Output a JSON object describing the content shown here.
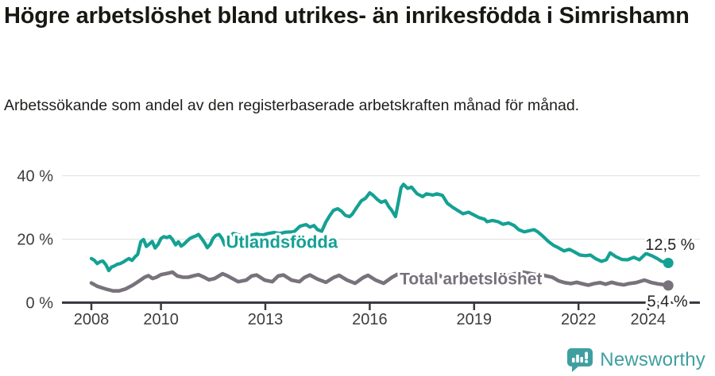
{
  "header": {
    "note": ""
  },
  "footer": {
    "brand": "Newsworthy",
    "brand_color": "#3f9fa0"
  },
  "chart_data": {
    "type": "line",
    "title": "Högre arbetslöshet bland utrikes- än inrikesfödda i Simrishamn",
    "subtitle": "Arbetssökande som andel av den registerbaserade arbetskraften månad för månad.",
    "x_axis": {
      "ticks": [
        2008,
        2010,
        2013,
        2016,
        2019,
        2022,
        2024
      ],
      "tick_labels": [
        "2008",
        "2010",
        "2013",
        "2016",
        "2019",
        "2022",
        "2024"
      ],
      "range": [
        2007.15,
        2025.5
      ]
    },
    "y_axis": {
      "ticks": [
        0,
        20,
        40
      ],
      "tick_labels": [
        "0 %",
        "20 %",
        "40 %"
      ],
      "unit": "%",
      "range": [
        0,
        45
      ],
      "grid": true
    },
    "series": [
      {
        "name": "Total arbetslöshet",
        "color": "#77727b",
        "line_width": 4.6,
        "end_value": 5.4,
        "end_label": "5,4 %",
        "points": [
          [
            2008.0,
            6.2
          ],
          [
            2008.18,
            5.1
          ],
          [
            2008.41,
            4.3
          ],
          [
            2008.62,
            3.7
          ],
          [
            2008.8,
            3.7
          ],
          [
            2008.98,
            4.3
          ],
          [
            2009.19,
            5.5
          ],
          [
            2009.37,
            6.8
          ],
          [
            2009.53,
            8.0
          ],
          [
            2009.64,
            8.5
          ],
          [
            2009.76,
            7.6
          ],
          [
            2009.87,
            8.0
          ],
          [
            2010.0,
            8.8
          ],
          [
            2010.17,
            9.2
          ],
          [
            2010.33,
            9.6
          ],
          [
            2010.47,
            8.4
          ],
          [
            2010.63,
            8.0
          ],
          [
            2010.78,
            8.0
          ],
          [
            2010.92,
            8.4
          ],
          [
            2011.08,
            8.8
          ],
          [
            2011.24,
            8.0
          ],
          [
            2011.38,
            7.2
          ],
          [
            2011.54,
            7.6
          ],
          [
            2011.77,
            9.1
          ],
          [
            2011.9,
            8.5
          ],
          [
            2012.0,
            7.9
          ],
          [
            2012.22,
            6.6
          ],
          [
            2012.45,
            7.1
          ],
          [
            2012.61,
            8.4
          ],
          [
            2012.75,
            8.7
          ],
          [
            2012.98,
            7.1
          ],
          [
            2013.2,
            6.6
          ],
          [
            2013.37,
            8.4
          ],
          [
            2013.52,
            8.7
          ],
          [
            2013.75,
            7.1
          ],
          [
            2013.98,
            6.6
          ],
          [
            2014.12,
            7.9
          ],
          [
            2014.28,
            8.7
          ],
          [
            2014.5,
            7.4
          ],
          [
            2014.74,
            6.4
          ],
          [
            2014.96,
            7.9
          ],
          [
            2015.12,
            8.6
          ],
          [
            2015.35,
            7.1
          ],
          [
            2015.58,
            6.1
          ],
          [
            2015.81,
            7.9
          ],
          [
            2015.95,
            8.6
          ],
          [
            2016.17,
            7.1
          ],
          [
            2016.4,
            6.1
          ],
          [
            2016.63,
            7.9
          ],
          [
            2016.79,
            8.9
          ],
          [
            2017.0,
            8.4
          ],
          [
            2017.2,
            7.2
          ],
          [
            2017.4,
            6.4
          ],
          [
            2017.6,
            7.0
          ],
          [
            2017.8,
            8.2
          ],
          [
            2018.0,
            8.6
          ],
          [
            2018.2,
            7.3
          ],
          [
            2018.4,
            6.5
          ],
          [
            2018.6,
            7.1
          ],
          [
            2018.8,
            8.3
          ],
          [
            2019.0,
            8.7
          ],
          [
            2019.2,
            7.4
          ],
          [
            2019.4,
            6.6
          ],
          [
            2019.6,
            7.2
          ],
          [
            2019.8,
            8.0
          ],
          [
            2020.0,
            8.6
          ],
          [
            2020.2,
            9.2
          ],
          [
            2020.4,
            9.6
          ],
          [
            2020.6,
            9.2
          ],
          [
            2020.8,
            8.8
          ],
          [
            2021.0,
            8.6
          ],
          [
            2021.25,
            8.0
          ],
          [
            2021.42,
            6.9
          ],
          [
            2021.6,
            6.3
          ],
          [
            2021.78,
            6.0
          ],
          [
            2021.95,
            6.4
          ],
          [
            2022.12,
            5.9
          ],
          [
            2022.28,
            5.5
          ],
          [
            2022.45,
            6.0
          ],
          [
            2022.62,
            6.3
          ],
          [
            2022.78,
            5.8
          ],
          [
            2022.95,
            6.4
          ],
          [
            2023.12,
            5.9
          ],
          [
            2023.3,
            5.6
          ],
          [
            2023.45,
            6.0
          ],
          [
            2023.65,
            6.3
          ],
          [
            2023.9,
            7.1
          ],
          [
            2024.1,
            6.3
          ],
          [
            2024.28,
            5.9
          ],
          [
            2024.42,
            5.7
          ],
          [
            2024.58,
            5.4
          ]
        ]
      },
      {
        "name": "Utlandsfödda",
        "color": "#14a194",
        "line_width": 4.2,
        "end_value": 12.5,
        "end_label": "12,5 %",
        "points": [
          [
            2008.0,
            13.9
          ],
          [
            2008.08,
            13.4
          ],
          [
            2008.17,
            12.3
          ],
          [
            2008.25,
            12.9
          ],
          [
            2008.33,
            13.1
          ],
          [
            2008.42,
            11.9
          ],
          [
            2008.5,
            10.1
          ],
          [
            2008.58,
            11.2
          ],
          [
            2008.67,
            11.6
          ],
          [
            2008.75,
            12.1
          ],
          [
            2008.83,
            12.3
          ],
          [
            2008.92,
            12.8
          ],
          [
            2009.0,
            13.4
          ],
          [
            2009.08,
            13.9
          ],
          [
            2009.17,
            13.3
          ],
          [
            2009.25,
            14.4
          ],
          [
            2009.33,
            15.2
          ],
          [
            2009.42,
            19.2
          ],
          [
            2009.5,
            19.9
          ],
          [
            2009.58,
            17.7
          ],
          [
            2009.67,
            18.5
          ],
          [
            2009.75,
            19.3
          ],
          [
            2009.83,
            17.2
          ],
          [
            2009.92,
            18.4
          ],
          [
            2010.0,
            20.2
          ],
          [
            2010.08,
            20.8
          ],
          [
            2010.17,
            20.5
          ],
          [
            2010.25,
            20.9
          ],
          [
            2010.33,
            19.9
          ],
          [
            2010.42,
            18.2
          ],
          [
            2010.5,
            19.2
          ],
          [
            2010.58,
            17.8
          ],
          [
            2010.67,
            18.5
          ],
          [
            2010.75,
            19.4
          ],
          [
            2010.83,
            20.2
          ],
          [
            2010.92,
            20.7
          ],
          [
            2011.0,
            21.0
          ],
          [
            2011.08,
            21.5
          ],
          [
            2011.17,
            20.2
          ],
          [
            2011.25,
            18.9
          ],
          [
            2011.33,
            17.3
          ],
          [
            2011.42,
            18.4
          ],
          [
            2011.5,
            20.3
          ],
          [
            2011.58,
            21.2
          ],
          [
            2011.67,
            21.5
          ],
          [
            2011.75,
            20.3
          ],
          [
            2011.83,
            18.2
          ],
          [
            2011.92,
            19.3
          ],
          [
            2012.0,
            21.0
          ],
          [
            2012.08,
            21.8
          ],
          [
            2012.25,
            21.3
          ],
          [
            2012.42,
            20.8
          ],
          [
            2012.58,
            21.2
          ],
          [
            2012.75,
            21.6
          ],
          [
            2012.92,
            21.3
          ],
          [
            2013.08,
            21.8
          ],
          [
            2013.25,
            22.1
          ],
          [
            2013.42,
            21.8
          ],
          [
            2013.58,
            22.2
          ],
          [
            2013.75,
            22.3
          ],
          [
            2013.83,
            22.4
          ],
          [
            2013.92,
            23.3
          ],
          [
            2014.0,
            24.1
          ],
          [
            2014.17,
            24.6
          ],
          [
            2014.28,
            23.8
          ],
          [
            2014.4,
            24.3
          ],
          [
            2014.5,
            23.0
          ],
          [
            2014.62,
            22.5
          ],
          [
            2014.74,
            25.4
          ],
          [
            2014.85,
            27.4
          ],
          [
            2014.96,
            29.1
          ],
          [
            2015.08,
            29.6
          ],
          [
            2015.19,
            28.8
          ],
          [
            2015.3,
            27.5
          ],
          [
            2015.42,
            27.1
          ],
          [
            2015.5,
            27.9
          ],
          [
            2015.65,
            30.4
          ],
          [
            2015.76,
            32.1
          ],
          [
            2015.88,
            32.9
          ],
          [
            2016.0,
            34.6
          ],
          [
            2016.1,
            33.8
          ],
          [
            2016.22,
            32.5
          ],
          [
            2016.33,
            31.6
          ],
          [
            2016.45,
            32.1
          ],
          [
            2016.55,
            30.2
          ],
          [
            2016.63,
            29.1
          ],
          [
            2016.74,
            27.1
          ],
          [
            2016.82,
            31.5
          ],
          [
            2016.9,
            36.2
          ],
          [
            2016.97,
            37.3
          ],
          [
            2017.09,
            36.0
          ],
          [
            2017.2,
            36.4
          ],
          [
            2017.36,
            34.3
          ],
          [
            2017.52,
            33.4
          ],
          [
            2017.63,
            34.3
          ],
          [
            2017.82,
            33.9
          ],
          [
            2017.93,
            34.3
          ],
          [
            2018.09,
            33.8
          ],
          [
            2018.23,
            31.3
          ],
          [
            2018.39,
            30.0
          ],
          [
            2018.55,
            28.9
          ],
          [
            2018.68,
            28.0
          ],
          [
            2018.84,
            28.5
          ],
          [
            2019.0,
            27.6
          ],
          [
            2019.14,
            26.8
          ],
          [
            2019.3,
            26.3
          ],
          [
            2019.37,
            25.5
          ],
          [
            2019.53,
            25.9
          ],
          [
            2019.69,
            25.5
          ],
          [
            2019.83,
            24.7
          ],
          [
            2019.99,
            25.1
          ],
          [
            2020.15,
            24.3
          ],
          [
            2020.28,
            23.0
          ],
          [
            2020.44,
            22.3
          ],
          [
            2020.6,
            22.7
          ],
          [
            2020.72,
            23.0
          ],
          [
            2020.83,
            22.3
          ],
          [
            2020.97,
            21.0
          ],
          [
            2021.13,
            19.3
          ],
          [
            2021.29,
            18.0
          ],
          [
            2021.42,
            17.3
          ],
          [
            2021.58,
            16.3
          ],
          [
            2021.74,
            16.8
          ],
          [
            2021.88,
            16.0
          ],
          [
            2022.04,
            15.0
          ],
          [
            2022.2,
            14.8
          ],
          [
            2022.34,
            15.0
          ],
          [
            2022.5,
            13.8
          ],
          [
            2022.66,
            13.0
          ],
          [
            2022.8,
            13.5
          ],
          [
            2022.91,
            15.7
          ],
          [
            2023.07,
            14.5
          ],
          [
            2023.25,
            13.6
          ],
          [
            2023.41,
            13.5
          ],
          [
            2023.59,
            14.3
          ],
          [
            2023.75,
            13.5
          ],
          [
            2023.94,
            15.5
          ],
          [
            2024.1,
            14.8
          ],
          [
            2024.26,
            13.9
          ],
          [
            2024.39,
            13.0
          ],
          [
            2024.58,
            12.5
          ]
        ]
      }
    ],
    "annotations": [
      {
        "name": "series-label-utlandsfodda",
        "text": "Utlandsfödda",
        "x": 2011.87,
        "y": 17.3,
        "color": "#14a194",
        "size": 22,
        "weight": "bold",
        "halo": true
      },
      {
        "name": "series-label-total-arbetsloshet",
        "text": "Total arbetslöshet",
        "x": 2016.86,
        "y": 5.8,
        "color": "#75707a",
        "size": 21,
        "weight": "bold",
        "halo": true
      },
      {
        "name": "end-value-label-utlandsfodda",
        "text": "12,5 %",
        "x": 2023.92,
        "y": 16.6,
        "color": "#222222",
        "size": 20,
        "weight": "normal",
        "halo": true
      },
      {
        "name": "end-value-label-total",
        "text": "5,4 %",
        "x": 2023.97,
        "y": -1.3,
        "color": "#222222",
        "size": 20,
        "weight": "normal",
        "halo": true
      }
    ],
    "style": {
      "grid_color": "#e4e4e4",
      "axis_color": "#3b3940",
      "tick_text_color": "#3d3d3d",
      "background": "#ffffff"
    },
    "legend_position": "inline-labels"
  }
}
